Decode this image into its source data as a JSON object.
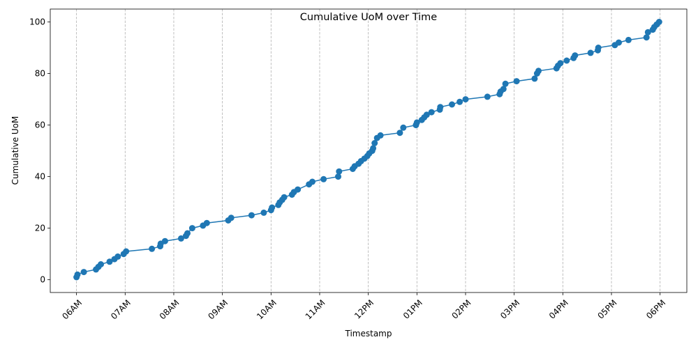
{
  "chart_data": {
    "type": "line",
    "title": "Cumulative UoM over Time",
    "xlabel": "Timestamp",
    "ylabel": "Cumulative UoM",
    "x_ticks": [
      "06AM",
      "07AM",
      "08AM",
      "09AM",
      "10AM",
      "11AM",
      "12PM",
      "01PM",
      "02PM",
      "03PM",
      "04PM",
      "05PM",
      "06PM"
    ],
    "x_tick_hours": [
      6,
      7,
      8,
      9,
      10,
      11,
      12,
      13,
      14,
      15,
      16,
      17,
      18
    ],
    "y_ticks": [
      0,
      20,
      40,
      60,
      80,
      100
    ],
    "xlim_hours": [
      5.46,
      18.55
    ],
    "ylim": [
      -4.95,
      105
    ],
    "grid": "x-dashed",
    "marker": "circle",
    "color": "#1f77b4",
    "series": [
      {
        "name": "",
        "x_hours": [
          6.0,
          6.02,
          6.15,
          6.4,
          6.45,
          6.5,
          6.68,
          6.78,
          6.85,
          6.97,
          7.02,
          7.55,
          7.72,
          7.73,
          7.82,
          8.15,
          8.25,
          8.28,
          8.38,
          8.6,
          8.68,
          9.12,
          9.18,
          9.6,
          9.85,
          10.0,
          10.02,
          10.15,
          10.18,
          10.23,
          10.27,
          10.43,
          10.47,
          10.55,
          10.78,
          10.85,
          11.08,
          11.38,
          11.4,
          11.68,
          11.72,
          11.8,
          11.85,
          11.92,
          11.98,
          12.02,
          12.08,
          12.1,
          12.13,
          12.18,
          12.25,
          12.65,
          12.72,
          12.98,
          13.0,
          13.1,
          13.15,
          13.2,
          13.3,
          13.47,
          13.48,
          13.72,
          13.88,
          14.0,
          14.45,
          14.7,
          14.72,
          14.78,
          14.82,
          15.05,
          15.42,
          15.47,
          15.5,
          15.87,
          15.9,
          15.95,
          16.08,
          16.22,
          16.25,
          16.57,
          16.72,
          16.73,
          17.07,
          17.15,
          17.35,
          17.72,
          17.75,
          17.85,
          17.88,
          17.93,
          17.98
        ],
        "y": [
          1,
          2,
          3,
          4,
          5,
          6,
          7,
          8,
          9,
          10,
          11,
          12,
          13,
          14,
          15,
          16,
          17,
          18,
          20,
          21,
          22,
          23,
          24,
          25,
          26,
          27,
          28,
          29,
          30,
          31,
          32,
          33,
          34,
          35,
          37,
          38,
          39,
          40,
          42,
          43,
          44,
          45,
          46,
          47,
          48,
          49,
          50,
          51,
          53,
          55,
          56,
          57,
          59,
          60,
          61,
          62,
          63,
          64,
          65,
          66,
          67,
          68,
          69,
          70,
          71,
          72,
          73,
          74,
          76,
          77,
          78,
          80,
          81,
          82,
          83,
          84,
          85,
          86,
          87,
          88,
          89,
          90,
          91,
          92,
          93,
          94,
          96,
          97,
          98,
          99,
          100
        ]
      }
    ]
  }
}
